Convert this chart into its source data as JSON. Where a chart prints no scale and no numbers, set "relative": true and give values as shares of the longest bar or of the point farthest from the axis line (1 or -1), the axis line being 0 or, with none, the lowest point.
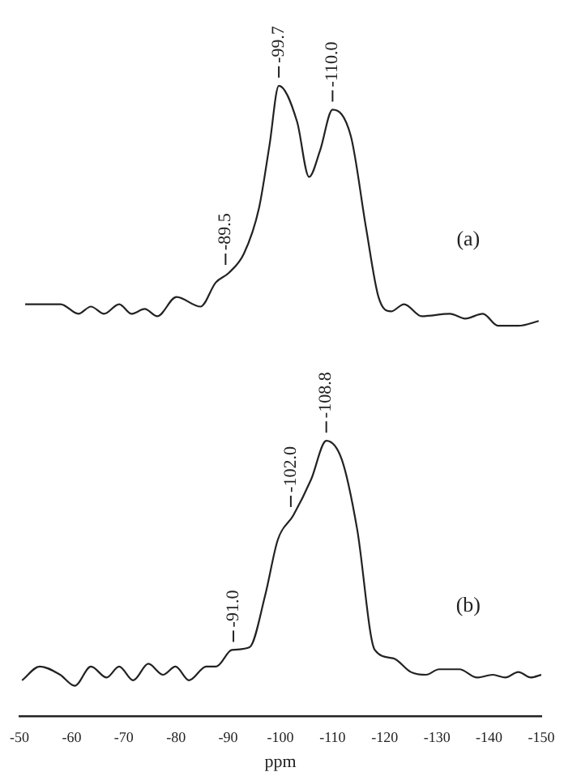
{
  "chart_data": [
    {
      "type": "line",
      "relative": true,
      "xlim": [
        -50,
        -150
      ],
      "xticks": [
        -50,
        -60,
        -70,
        -80,
        -90,
        -100,
        -110,
        -120,
        -130,
        -140,
        -150
      ],
      "tick_labels": false,
      "grid": false,
      "legend": false,
      "marker": "none",
      "series": [
        {
          "color": "#222222",
          "x": [
            -51.1,
            -57.9,
            -61.3,
            -63.7,
            -66.2,
            -69.1,
            -71.5,
            -74.0,
            -76.4,
            -80.1,
            -84.7,
            -87.6,
            -90.1,
            -93.0,
            -95.9,
            -97.9,
            -99.7,
            -103.2,
            -105.5,
            -107.6,
            -110.0,
            -113.5,
            -116.4,
            -118.8,
            -121.2,
            -123.7,
            -127.1,
            -132.5,
            -135.4,
            -138.8,
            -141.7,
            -145.6,
            -149.5
          ],
          "values": [
            0.09,
            0.09,
            0.05,
            0.08,
            0.05,
            0.09,
            0.05,
            0.07,
            0.04,
            0.12,
            0.08,
            0.18,
            0.22,
            0.3,
            0.49,
            0.75,
            1.0,
            0.85,
            0.62,
            0.73,
            0.9,
            0.79,
            0.41,
            0.12,
            0.06,
            0.09,
            0.04,
            0.05,
            0.03,
            0.05,
            0.0,
            0.0,
            0.02
          ]
        }
      ],
      "annotations": [
        {
          "text": "-89.5",
          "x": -89.5,
          "y": 0.22
        },
        {
          "text": "-99.7",
          "x": -99.7,
          "y": 1.0
        },
        {
          "text": "-110.0",
          "x": -110.0,
          "y": 0.9
        },
        "(a)"
      ]
    },
    {
      "type": "line",
      "relative": true,
      "xlim": [
        -50,
        -150
      ],
      "xticks": [
        -50,
        -60,
        -70,
        -80,
        -90,
        -100,
        -110,
        -120,
        -130,
        -140,
        -150
      ],
      "tick_labels": "x",
      "xlabel": "ppm",
      "grid": false,
      "legend": false,
      "marker": "none",
      "series": [
        {
          "color": "#222222",
          "x": [
            -50.5,
            -53.9,
            -57.8,
            -60.6,
            -63.7,
            -66.7,
            -69.1,
            -71.8,
            -74.7,
            -77.5,
            -79.9,
            -82.5,
            -85.8,
            -87.7,
            -90.7,
            -94.1,
            -97.1,
            -99.5,
            -102.5,
            -105.9,
            -108.8,
            -111.8,
            -114.7,
            -118.1,
            -121.6,
            -125.0,
            -127.9,
            -130.4,
            -134.3,
            -137.7,
            -140.7,
            -143.1,
            -145.6,
            -148.0,
            -150.0
          ],
          "values": [
            0.13,
            0.18,
            0.15,
            0.11,
            0.18,
            0.14,
            0.18,
            0.13,
            0.19,
            0.15,
            0.18,
            0.13,
            0.18,
            0.18,
            0.24,
            0.25,
            0.44,
            0.64,
            0.73,
            0.86,
            1.0,
            0.93,
            0.68,
            0.24,
            0.21,
            0.16,
            0.15,
            0.17,
            0.17,
            0.14,
            0.15,
            0.14,
            0.16,
            0.14,
            0.15
          ]
        }
      ],
      "annotations": [
        {
          "text": "-91.0",
          "x": -91.0,
          "y": 0.24
        },
        {
          "text": "-102.0",
          "x": -102.0,
          "y": 0.73
        },
        {
          "text": "-108.8",
          "x": -108.8,
          "y": 1.0
        },
        "(b)"
      ]
    }
  ]
}
